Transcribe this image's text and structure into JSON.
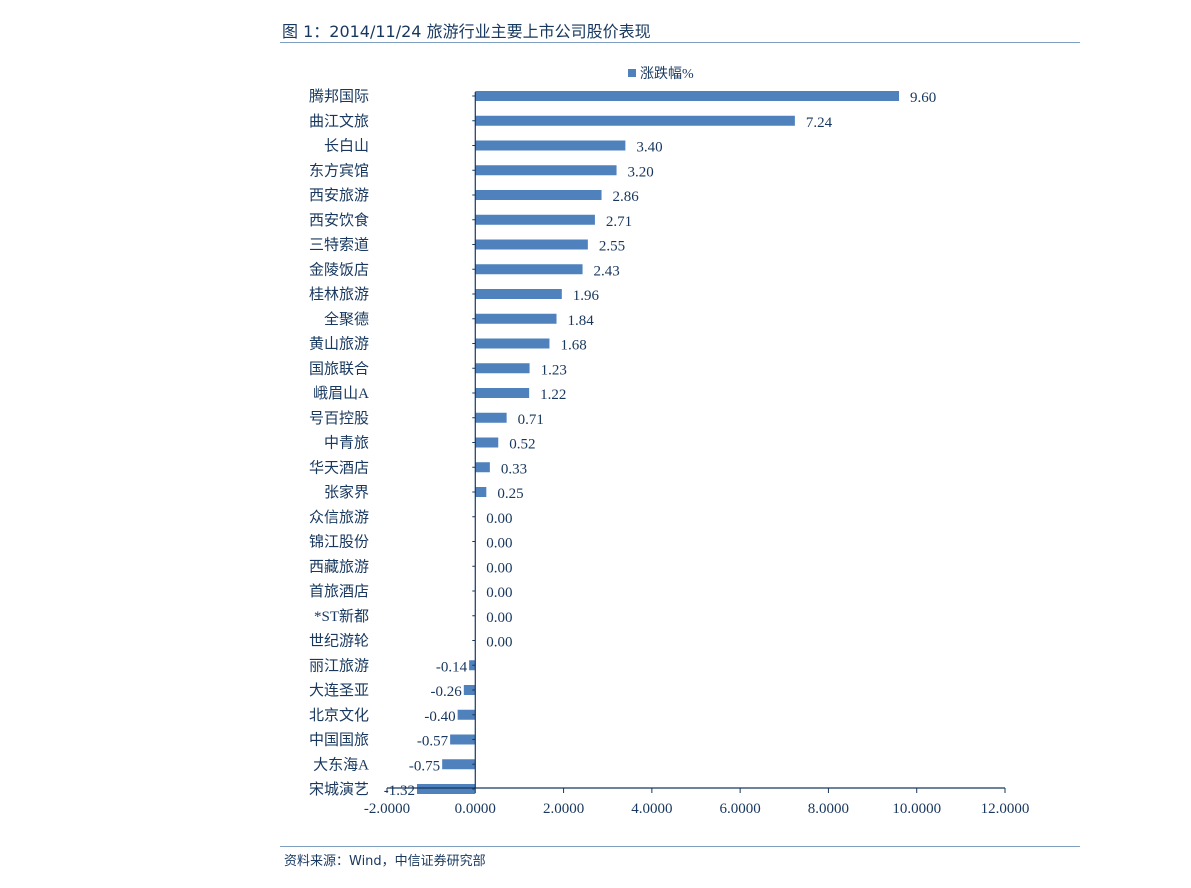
{
  "figure_title": "图 1：2014/11/24 旅游行业主要上市公司股价表现",
  "source": "资料来源：Wind，中信证券研究部",
  "colors": {
    "bar": "#4f81bd",
    "text": "#17375e",
    "axis": "#17375e"
  },
  "chart_data": {
    "type": "bar",
    "orientation": "horizontal",
    "title": "",
    "legend": {
      "position": "top",
      "entries": [
        "涨跌幅%"
      ]
    },
    "series": [
      {
        "name": "涨跌幅%",
        "values": [
          9.6,
          7.24,
          3.4,
          3.2,
          2.86,
          2.71,
          2.55,
          2.43,
          1.96,
          1.84,
          1.68,
          1.23,
          1.22,
          0.71,
          0.52,
          0.33,
          0.25,
          0.0,
          0.0,
          0.0,
          0.0,
          0.0,
          0.0,
          -0.14,
          -0.26,
          -0.4,
          -0.57,
          -0.75,
          -1.32
        ],
        "labels": [
          "9.60",
          "7.24",
          "3.40",
          "3.20",
          "2.86",
          "2.71",
          "2.55",
          "2.43",
          "1.96",
          "1.84",
          "1.68",
          "1.23",
          "1.22",
          "0.71",
          "0.52",
          "0.33",
          "0.25",
          "0.00",
          "0.00",
          "0.00",
          "0.00",
          "0.00",
          "0.00",
          "-0.14",
          "-0.26",
          "-0.40",
          "-0.57",
          "-0.75",
          "-1.32"
        ]
      }
    ],
    "categories": [
      "腾邦国际",
      "曲江文旅",
      "长白山",
      "东方宾馆",
      "西安旅游",
      "西安饮食",
      "三特索道",
      "金陵饭店",
      "桂林旅游",
      "全聚德",
      "黄山旅游",
      "国旅联合",
      "峨眉山A",
      "号百控股",
      "中青旅",
      "华天酒店",
      "张家界",
      "众信旅游",
      "锦江股份",
      "西藏旅游",
      "首旅酒店",
      "*ST新都",
      "世纪游轮",
      "丽江旅游",
      "大连圣亚",
      "北京文化",
      "中国国旅",
      "大东海A",
      "宋城演艺"
    ],
    "x_ticks": [
      -2,
      0,
      2,
      4,
      6,
      8,
      10,
      12
    ],
    "x_tick_labels": [
      "-2.0000",
      "0.0000",
      "2.0000",
      "4.0000",
      "6.0000",
      "8.0000",
      "10.0000",
      "12.0000"
    ],
    "xlim": [
      -2,
      12
    ],
    "grid": false
  }
}
